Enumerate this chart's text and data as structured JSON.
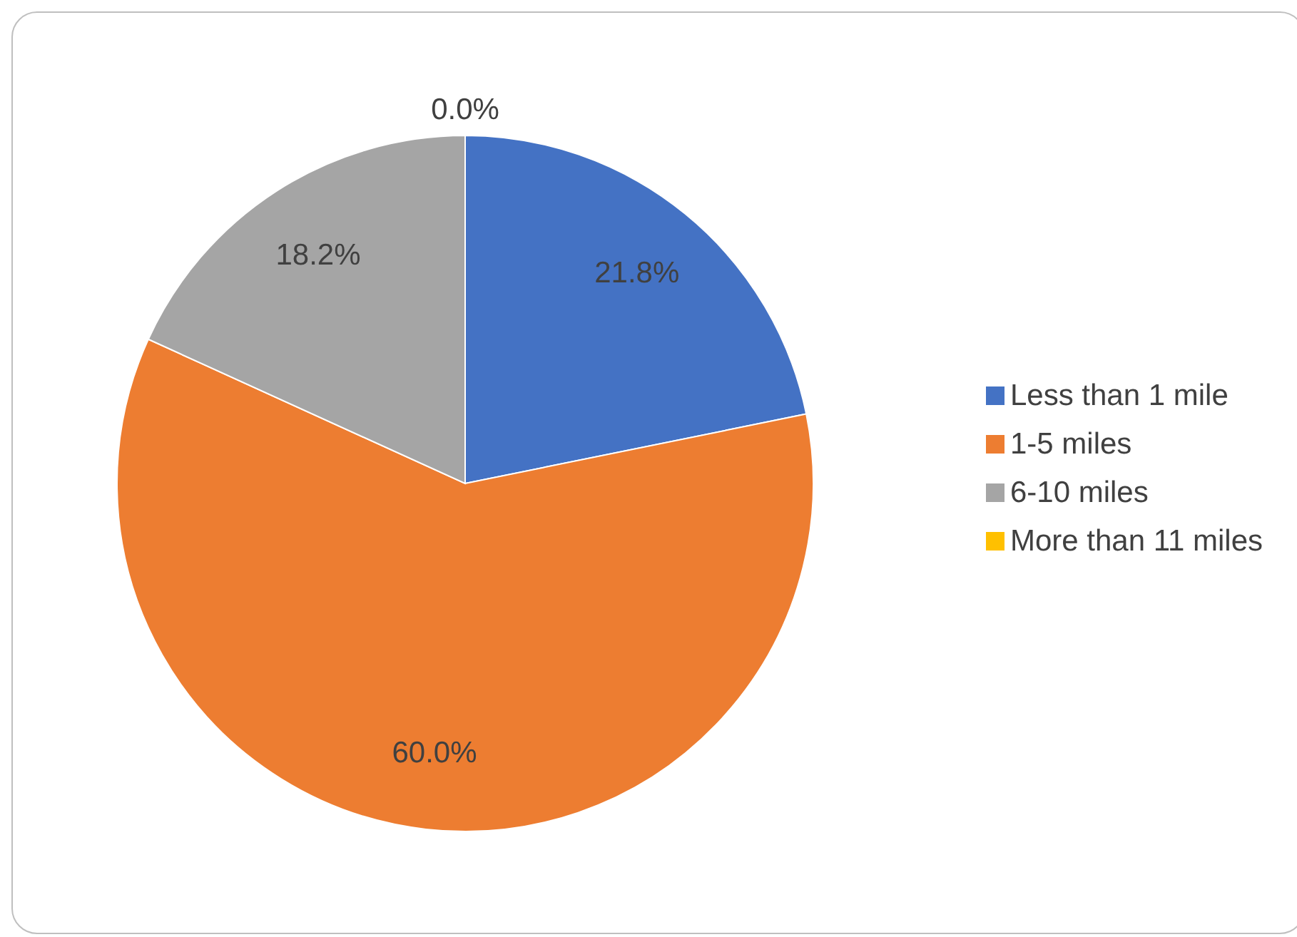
{
  "chart_data": {
    "type": "pie",
    "categories": [
      "Less than 1 mile",
      "1-5 miles",
      "6-10 miles",
      "More than 11 miles"
    ],
    "values": [
      21.8,
      60.0,
      18.2,
      0.0
    ],
    "colors": [
      "#4472c4",
      "#ed7d31",
      "#a5a5a5",
      "#ffc000"
    ],
    "value_labels": [
      "21.8%",
      "60.0%",
      "18.2%",
      "0.0%"
    ],
    "legend": "right"
  }
}
